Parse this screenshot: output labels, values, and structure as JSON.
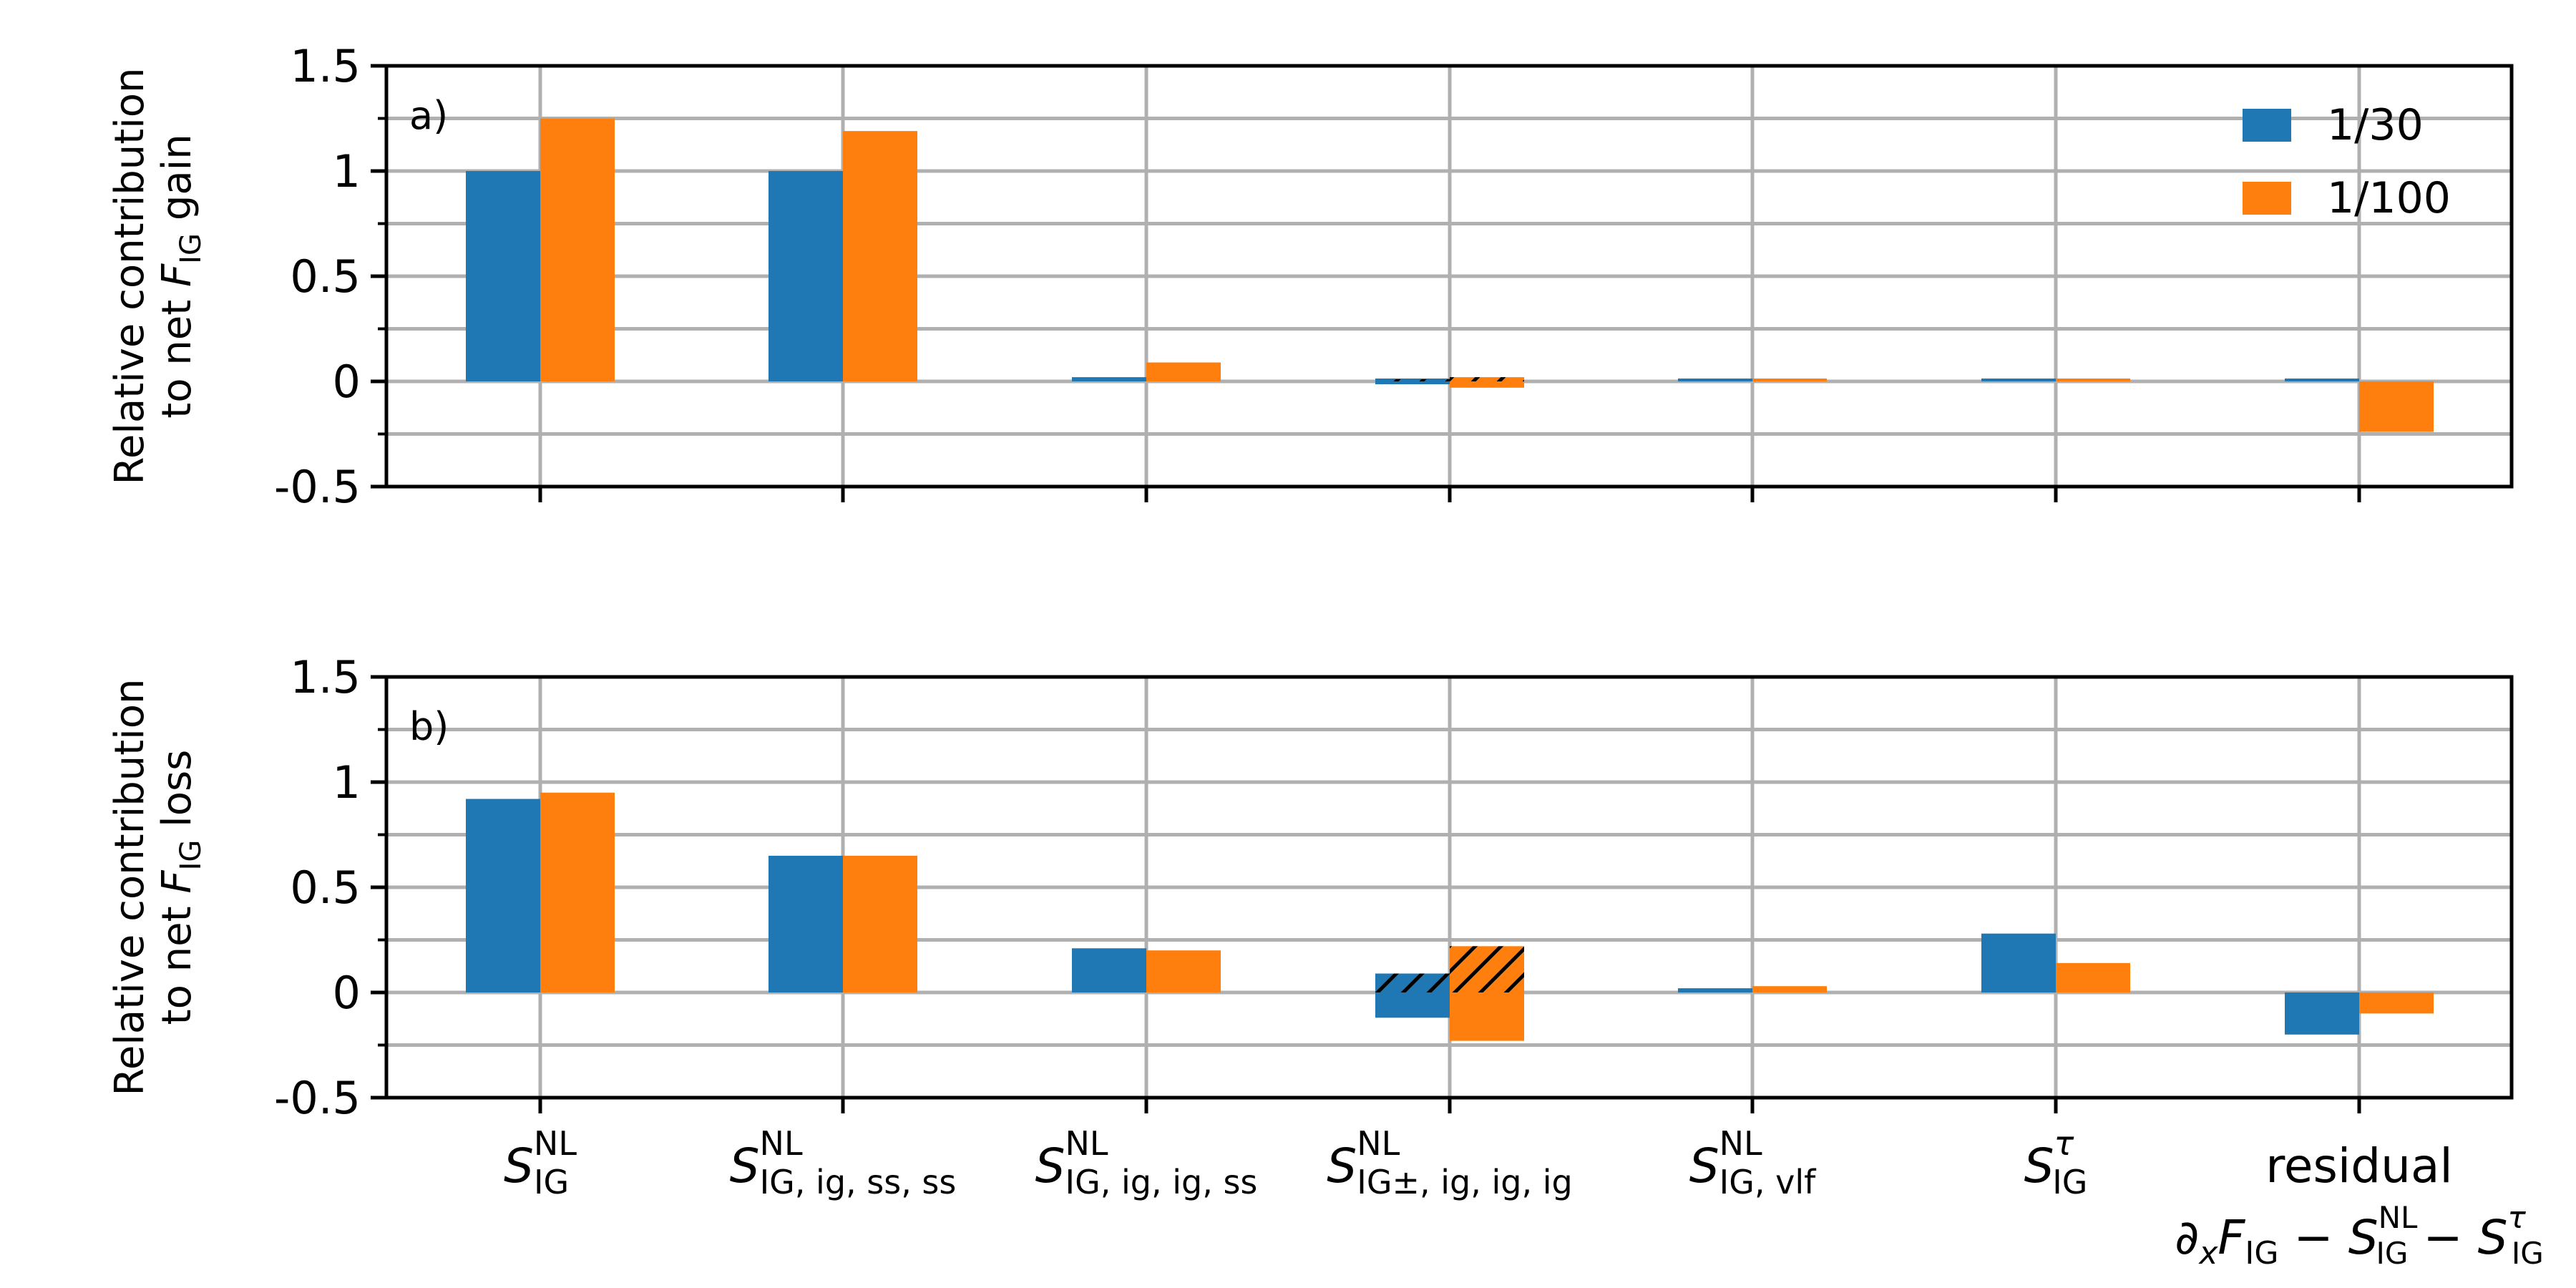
{
  "chart_data": {
    "type": "bar",
    "categories": [
      {
        "base": "S",
        "sub": "IG",
        "sup": "NL",
        "line2": null
      },
      {
        "base": "S",
        "sub": "IG, ig, ss, ss",
        "sup": "NL",
        "line2": null
      },
      {
        "base": "S",
        "sub": "IG, ig, ig, ss",
        "sup": "NL",
        "line2": null
      },
      {
        "base": "S",
        "sub": "IG±, ig, ig, ig",
        "sup": "NL",
        "line2": null
      },
      {
        "base": "S",
        "sub": "IG, vlf",
        "sup": "NL",
        "line2": null
      },
      {
        "base": "S",
        "sub": "IG",
        "sup": "τ",
        "line2": null
      },
      {
        "base": "residual",
        "sub": "",
        "sup": "",
        "line2": "∂ₓF_IG − S_IG^NL − S_IG^τ"
      }
    ],
    "legend": {
      "placement": "top-right",
      "entries": [
        "1/30",
        "1/100"
      ]
    },
    "series_colors": [
      "#1f77b4",
      "#ff7f0e"
    ],
    "ylim": [
      -0.5,
      1.5
    ],
    "yticks": [
      "1.5",
      "1",
      "0.5",
      "0",
      "-0.5"
    ],
    "ytick_values": [
      1.5,
      1,
      0.5,
      0,
      -0.5
    ],
    "grid": true,
    "panels": [
      {
        "tag": "a)",
        "ylabel_line1": "Relative contribution",
        "ylabel_line2": "to net F_IG gain",
        "series": [
          {
            "name": "1/30",
            "values": [
              1.0,
              1.0,
              0.02,
              0.01,
              0.01,
              0.01,
              0.0
            ],
            "hatched_negative": [
              null,
              null,
              null,
              -0.01,
              null,
              null,
              null
            ]
          },
          {
            "name": "1/100",
            "values": [
              1.25,
              1.19,
              0.09,
              0.02,
              0.01,
              0.01,
              -0.24
            ],
            "hatched_negative": [
              null,
              null,
              null,
              -0.03,
              null,
              null,
              null
            ]
          }
        ]
      },
      {
        "tag": "b)",
        "ylabel_line1": "Relative contribution",
        "ylabel_line2": "to net F_IG loss",
        "series": [
          {
            "name": "1/30",
            "values": [
              0.92,
              0.65,
              0.21,
              0.09,
              0.02,
              0.28,
              -0.2
            ],
            "hatched_negative": [
              null,
              null,
              null,
              -0.12,
              null,
              null,
              null
            ]
          },
          {
            "name": "1/100",
            "values": [
              0.95,
              0.65,
              0.2,
              0.22,
              0.03,
              0.14,
              -0.1
            ],
            "hatched_negative": [
              null,
              null,
              null,
              -0.23,
              null,
              null,
              null
            ]
          }
        ]
      }
    ]
  }
}
